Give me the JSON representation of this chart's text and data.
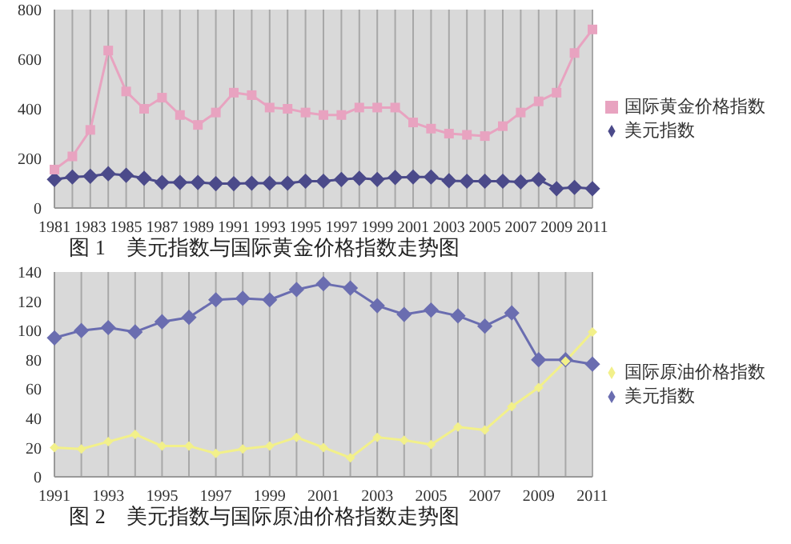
{
  "chart_data": [
    {
      "type": "line",
      "title": "图 1　美元指数与国际黄金价格指数走势图",
      "categories": [
        "1981",
        null,
        "1983",
        null,
        "1985",
        null,
        "1987",
        null,
        "1989",
        null,
        "1991",
        null,
        "1993",
        null,
        "1995",
        null,
        "1997",
        null,
        "1999",
        null,
        "2001",
        null,
        "2003",
        null,
        "2005",
        null,
        "2007",
        null,
        "2009",
        null,
        "2011"
      ],
      "series": [
        {
          "name": "美元指数",
          "color": "#4b4a8a",
          "marker": "diamond",
          "values": [
            115,
            125,
            128,
            138,
            132,
            120,
            103,
            103,
            103,
            98,
            98,
            100,
            100,
            100,
            108,
            108,
            115,
            120,
            115,
            123,
            125,
            125,
            110,
            108,
            108,
            108,
            105,
            115,
            78,
            83,
            78
          ]
        },
        {
          "name": "国际黄金价格指数",
          "color": "#e8a3c0",
          "marker": "square",
          "values": [
            155,
            208,
            315,
            635,
            470,
            400,
            445,
            375,
            335,
            385,
            465,
            455,
            405,
            400,
            385,
            375,
            375,
            405,
            405,
            405,
            345,
            320,
            300,
            295,
            290,
            330,
            385,
            430,
            465,
            625,
            720
          ]
        }
      ],
      "ylim": [
        0,
        800
      ],
      "yticks": [
        0,
        200,
        400,
        600,
        800
      ],
      "grid": "x",
      "legend": "right"
    },
    {
      "type": "line",
      "title": "图 2　美元指数与国际原油价格指数走势图",
      "categories": [
        "1991",
        null,
        "1993",
        null,
        "1995",
        null,
        "1997",
        null,
        "1999",
        null,
        "2001",
        null,
        "2003",
        null,
        "2005",
        null,
        "2007",
        null,
        "2009",
        null,
        "2011"
      ],
      "series": [
        {
          "name": "美元指数",
          "color": "#6a6db0",
          "marker": "diamond",
          "values": [
            95,
            100,
            102,
            99,
            106,
            109,
            121,
            122,
            121,
            128,
            132,
            129,
            117,
            111,
            114,
            110,
            103,
            112,
            80,
            80,
            77
          ]
        },
        {
          "name": "国际原油价格指数",
          "color": "#f2f08a",
          "marker": "diamond",
          "values": [
            20,
            19,
            24,
            29,
            21,
            21,
            16,
            19,
            21,
            27,
            20,
            13,
            27,
            25,
            22,
            34,
            32,
            48,
            61,
            79,
            99
          ]
        }
      ],
      "ylim": [
        0,
        140
      ],
      "yticks": [
        0,
        20,
        40,
        60,
        80,
        100,
        120,
        140
      ],
      "grid": "x",
      "legend": "right"
    }
  ]
}
